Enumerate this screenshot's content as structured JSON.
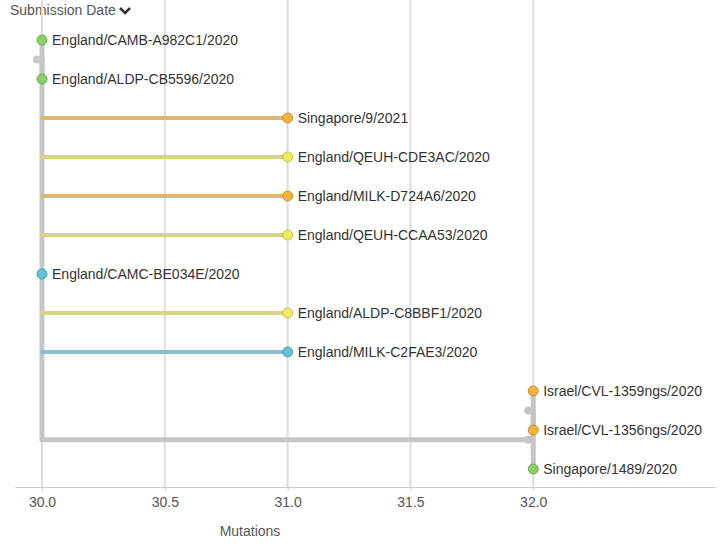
{
  "chart_data": {
    "type": "tree",
    "title": "Submission Date",
    "x_label": "Mutations",
    "xlim": [
      29.89,
      32.74
    ],
    "xticks": [
      {
        "value": 30,
        "label": "30.0"
      },
      30.5,
      {
        "value": 31,
        "label": "31.0"
      },
      31.5,
      {
        "value": 32,
        "label": "32.0"
      }
    ],
    "grid": true,
    "tick_labels": "x",
    "tree": {
      "x": 30,
      "children": [
        {
          "x": 30,
          "children": [
            {
              "name": "England/CAMB-A982C1/2020",
              "x": 30,
              "color": "#8bd066"
            },
            {
              "name": "England/ALDP-CB5596/2020",
              "x": 30,
              "color": "#8bd066"
            }
          ]
        },
        {
          "name": "Singapore/9/2021",
          "x": 31,
          "color": "#f6b43e"
        },
        {
          "name": "England/QEUH-CDE3AC/2020",
          "x": 31,
          "color": "#eeec5e"
        },
        {
          "name": "England/MILK-D724A6/2020",
          "x": 31,
          "color": "#f6b43e"
        },
        {
          "name": "England/QEUH-CCAA53/2020",
          "x": 31,
          "color": "#eeec5e"
        },
        {
          "name": "England/CAMC-BE034E/2020",
          "x": 30,
          "color": "#5fc3d4"
        },
        {
          "name": "England/ALDP-C8BBF1/2020",
          "x": 31,
          "color": "#eeec5e"
        },
        {
          "name": "England/MILK-C2FAE3/2020",
          "x": 31,
          "color": "#5fc3d4"
        },
        {
          "x": 32,
          "children": [
            {
              "x": 32,
              "children": [
                {
                  "name": "Israel/CVL-1359ngs/2020",
                  "x": 32,
                  "color": "#f6b43e"
                },
                {
                  "name": "Israel/CVL-1356ngs/2020",
                  "x": 32,
                  "color": "#f6b43e"
                }
              ]
            },
            {
              "name": "Singapore/1489/2020",
              "x": 32,
              "color": "#8bd066"
            }
          ]
        }
      ]
    }
  }
}
